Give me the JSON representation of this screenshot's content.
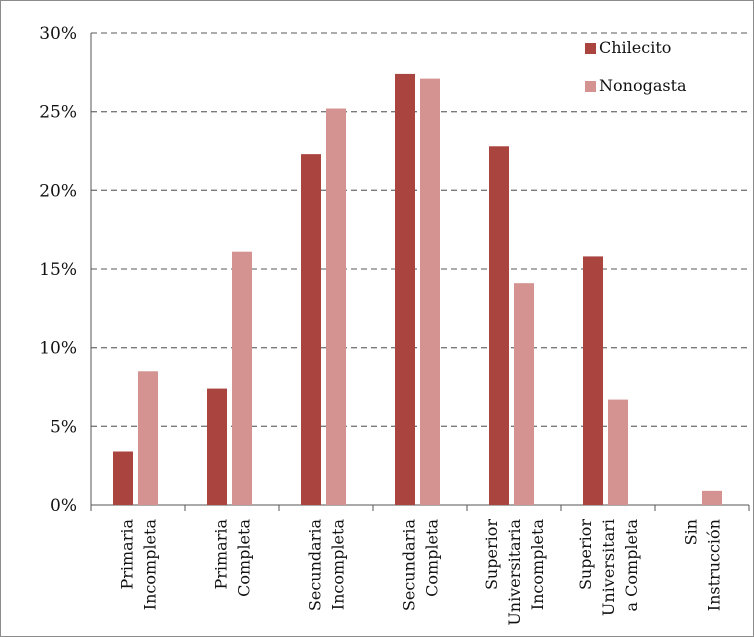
{
  "chart_data": {
    "type": "bar",
    "title": "",
    "xlabel": "",
    "ylabel": "",
    "ylim": [
      0,
      30
    ],
    "ytick_values": [
      0,
      5,
      10,
      15,
      20,
      25,
      30
    ],
    "ytick_labels": [
      "0%",
      "5%",
      "10%",
      "15%",
      "20%",
      "25%",
      "30%"
    ],
    "grid": true,
    "legend_position": "top-right",
    "categories": [
      [
        "Primaria",
        "Incompleta"
      ],
      [
        "Primaria",
        "Completa"
      ],
      [
        "Secundaria",
        "Incompleta"
      ],
      [
        "Secundaria",
        "Completa"
      ],
      [
        "Superior",
        "Universitaria",
        "Incompleta"
      ],
      [
        "Superior",
        "Universitari",
        "a Completa"
      ],
      [
        "Sin",
        "Instrucción"
      ]
    ],
    "series": [
      {
        "name": "Chilecito",
        "color": "#a9443f",
        "values": [
          3.4,
          7.4,
          22.3,
          27.4,
          22.8,
          15.8,
          0
        ]
      },
      {
        "name": "Nonogasta",
        "color": "#d49391",
        "values": [
          8.5,
          16.1,
          25.2,
          27.1,
          14.1,
          6.7,
          0.9
        ]
      }
    ]
  }
}
